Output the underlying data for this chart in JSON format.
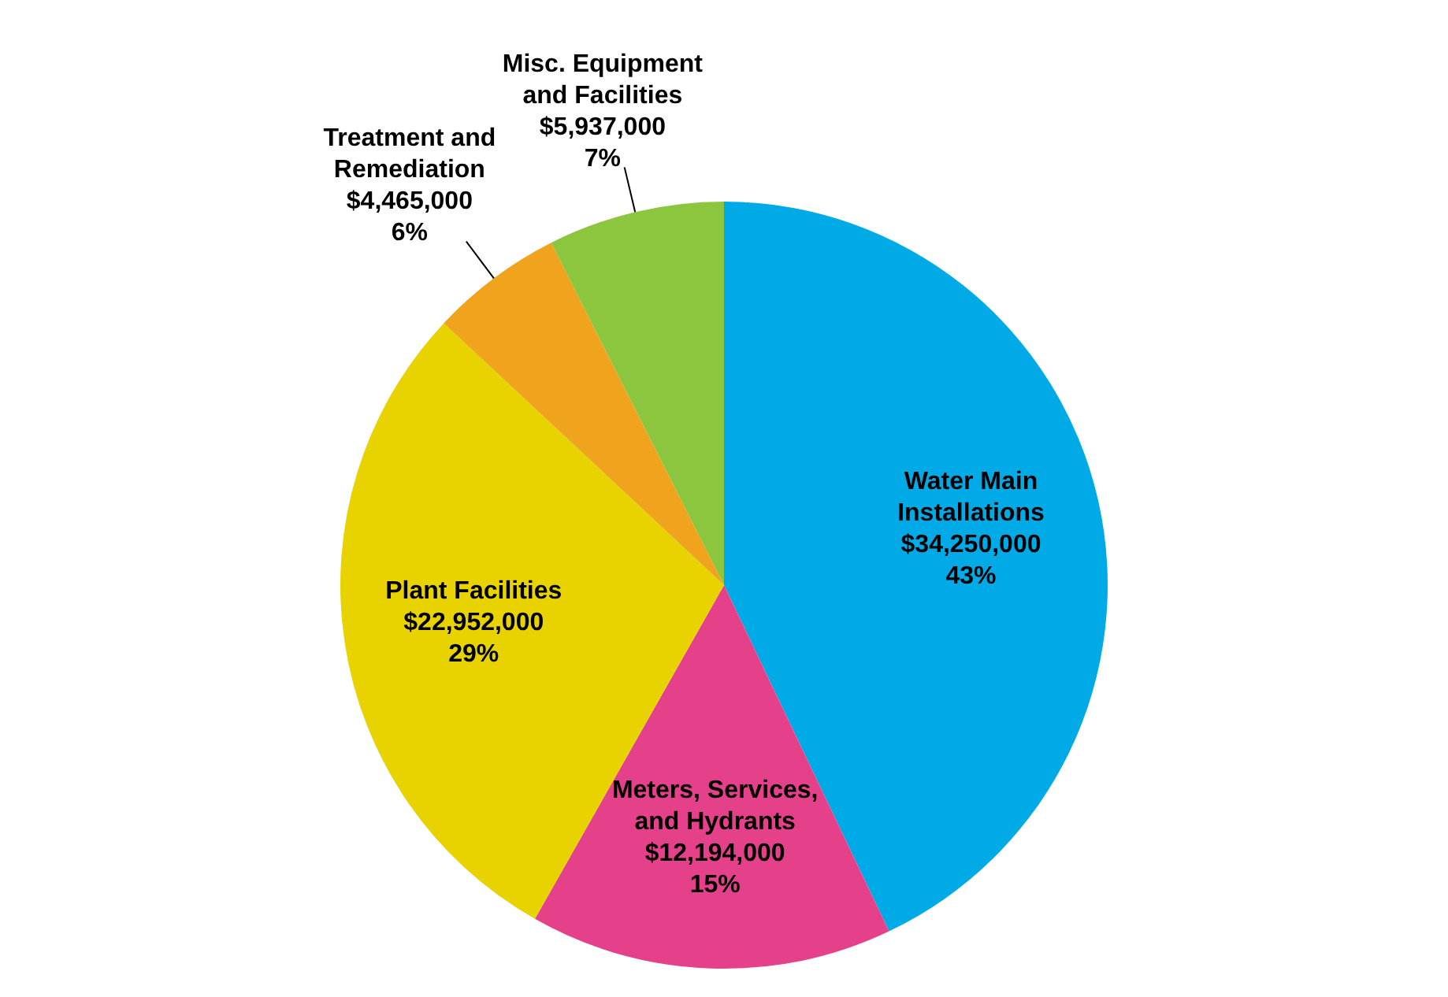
{
  "chart_data": {
    "type": "pie",
    "categories": [
      "Water Main Installations",
      "Meters, Services, and Hydrants",
      "Plant Facilities",
      "Treatment and Remediation",
      "Misc. Equipment and Facilities"
    ],
    "values": [
      34250000,
      12194000,
      22952000,
      4465000,
      5937000
    ],
    "value_labels": [
      "$34,250,000\n43%",
      "$12,194,000\n15%",
      "$22,952,000\n29%",
      "$4,465,000\n6%",
      "$5,937,000\n7%"
    ],
    "colors": [
      "#00aae7",
      "#e4418a",
      "#e8d300",
      "#f0a31c",
      "#8cc63e"
    ],
    "legend": false
  }
}
